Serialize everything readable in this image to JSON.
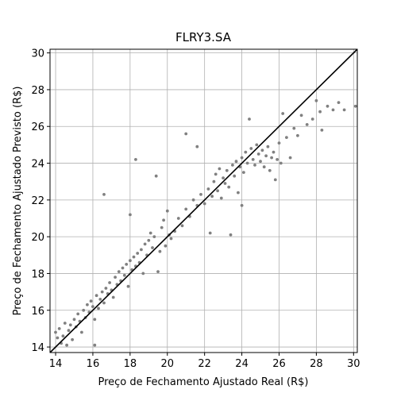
{
  "chart_data": {
    "type": "scatter",
    "title": "FLRY3.SA",
    "xlabel": "Preço de Fechamento Ajustado Real (R$)",
    "ylabel": "Preço de Fechamento Ajustado Previsto (R$)",
    "xlim": [
      13.7,
      30.2
    ],
    "ylim": [
      13.7,
      30.2
    ],
    "xticks": [
      14,
      16,
      18,
      20,
      22,
      24,
      26,
      28,
      30
    ],
    "yticks": [
      14,
      16,
      18,
      20,
      22,
      24,
      26,
      28,
      30
    ],
    "grid": true,
    "point_color": "#808080",
    "line_color": "#000000",
    "reference_line": {
      "x": [
        13.7,
        30.2
      ],
      "y": [
        13.7,
        30.2
      ]
    },
    "points": [
      [
        14.0,
        14.8
      ],
      [
        14.1,
        14.5
      ],
      [
        14.2,
        15.0
      ],
      [
        14.3,
        14.2
      ],
      [
        14.4,
        14.6
      ],
      [
        14.5,
        15.3
      ],
      [
        14.6,
        14.1
      ],
      [
        14.7,
        14.9
      ],
      [
        14.8,
        15.2
      ],
      [
        14.9,
        14.4
      ],
      [
        15.0,
        15.5
      ],
      [
        15.1,
        15.1
      ],
      [
        15.2,
        15.8
      ],
      [
        15.3,
        15.4
      ],
      [
        15.4,
        14.8
      ],
      [
        15.5,
        16.0
      ],
      [
        15.6,
        15.6
      ],
      [
        15.7,
        16.3
      ],
      [
        15.8,
        15.9
      ],
      [
        15.9,
        16.5
      ],
      [
        16.0,
        16.2
      ],
      [
        16.1,
        15.5
      ],
      [
        16.1,
        14.1
      ],
      [
        16.2,
        16.8
      ],
      [
        16.3,
        16.1
      ],
      [
        16.4,
        16.6
      ],
      [
        16.5,
        17.0
      ],
      [
        16.6,
        16.4
      ],
      [
        16.6,
        22.3
      ],
      [
        16.7,
        17.2
      ],
      [
        16.8,
        16.9
      ],
      [
        16.9,
        17.5
      ],
      [
        17.0,
        17.1
      ],
      [
        17.1,
        16.7
      ],
      [
        17.2,
        17.8
      ],
      [
        17.3,
        17.4
      ],
      [
        17.4,
        18.1
      ],
      [
        17.5,
        17.6
      ],
      [
        17.6,
        18.3
      ],
      [
        17.7,
        17.9
      ],
      [
        17.8,
        18.5
      ],
      [
        17.9,
        17.3
      ],
      [
        18.0,
        18.7
      ],
      [
        18.0,
        21.2
      ],
      [
        18.1,
        18.2
      ],
      [
        18.2,
        18.9
      ],
      [
        18.3,
        18.4
      ],
      [
        18.3,
        24.2
      ],
      [
        18.4,
        19.1
      ],
      [
        18.5,
        18.6
      ],
      [
        18.6,
        19.3
      ],
      [
        18.7,
        18.0
      ],
      [
        18.8,
        19.6
      ],
      [
        18.9,
        19.0
      ],
      [
        19.0,
        19.8
      ],
      [
        19.1,
        20.2
      ],
      [
        19.2,
        19.4
      ],
      [
        19.3,
        20.0
      ],
      [
        19.4,
        23.3
      ],
      [
        19.5,
        18.1
      ],
      [
        19.6,
        19.2
      ],
      [
        19.7,
        20.5
      ],
      [
        19.8,
        20.9
      ],
      [
        19.9,
        19.5
      ],
      [
        20.0,
        21.4
      ],
      [
        20.1,
        20.1
      ],
      [
        20.2,
        19.9
      ],
      [
        20.4,
        20.3
      ],
      [
        20.6,
        21.0
      ],
      [
        20.8,
        20.6
      ],
      [
        21.0,
        21.5
      ],
      [
        21.0,
        25.6
      ],
      [
        21.2,
        21.1
      ],
      [
        21.4,
        22.0
      ],
      [
        21.6,
        21.7
      ],
      [
        21.6,
        24.9
      ],
      [
        21.8,
        22.3
      ],
      [
        22.0,
        21.8
      ],
      [
        22.2,
        22.6
      ],
      [
        22.3,
        20.2
      ],
      [
        22.4,
        22.2
      ],
      [
        22.5,
        23.0
      ],
      [
        22.6,
        23.4
      ],
      [
        22.7,
        22.5
      ],
      [
        22.8,
        23.7
      ],
      [
        22.9,
        22.1
      ],
      [
        23.0,
        23.2
      ],
      [
        23.1,
        22.9
      ],
      [
        23.2,
        23.6
      ],
      [
        23.3,
        22.7
      ],
      [
        23.4,
        20.1
      ],
      [
        23.5,
        23.9
      ],
      [
        23.6,
        23.3
      ],
      [
        23.7,
        24.1
      ],
      [
        23.8,
        22.4
      ],
      [
        23.9,
        23.8
      ],
      [
        24.0,
        24.3
      ],
      [
        24.0,
        21.7
      ],
      [
        24.1,
        23.5
      ],
      [
        24.2,
        24.6
      ],
      [
        24.3,
        24.0
      ],
      [
        24.4,
        26.4
      ],
      [
        24.5,
        24.8
      ],
      [
        24.6,
        24.2
      ],
      [
        24.7,
        23.9
      ],
      [
        24.8,
        25.0
      ],
      [
        24.9,
        24.5
      ],
      [
        25.0,
        24.1
      ],
      [
        25.1,
        24.7
      ],
      [
        25.2,
        23.8
      ],
      [
        25.3,
        24.4
      ],
      [
        25.4,
        24.9
      ],
      [
        25.5,
        23.6
      ],
      [
        25.6,
        24.3
      ],
      [
        25.7,
        24.6
      ],
      [
        25.8,
        23.1
      ],
      [
        25.9,
        24.2
      ],
      [
        26.0,
        25.1
      ],
      [
        26.1,
        24.0
      ],
      [
        26.2,
        26.7
      ],
      [
        26.4,
        25.4
      ],
      [
        26.6,
        24.3
      ],
      [
        26.8,
        25.9
      ],
      [
        27.0,
        25.5
      ],
      [
        27.2,
        26.6
      ],
      [
        27.5,
        26.1
      ],
      [
        27.8,
        26.4
      ],
      [
        28.0,
        27.4
      ],
      [
        28.2,
        26.8
      ],
      [
        28.3,
        25.8
      ],
      [
        28.6,
        27.1
      ],
      [
        28.9,
        26.9
      ],
      [
        29.2,
        27.3
      ],
      [
        29.5,
        26.9
      ],
      [
        30.1,
        27.1
      ]
    ]
  }
}
